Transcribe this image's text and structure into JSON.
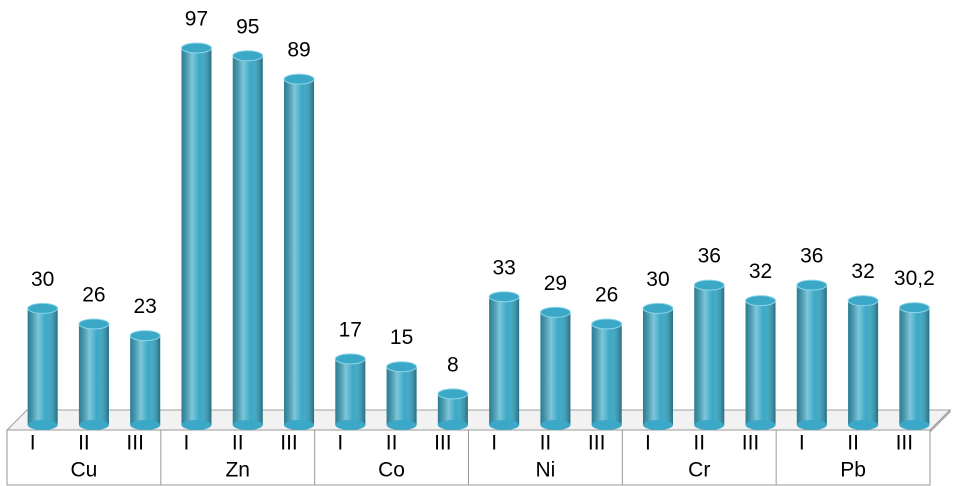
{
  "chart_data": {
    "type": "bar",
    "categories": [
      "I",
      "II",
      "III",
      "I",
      "II",
      "III",
      "I",
      "II",
      "III",
      "I",
      "II",
      "III",
      "I",
      "II",
      "III",
      "I",
      "II",
      "III"
    ],
    "groups": [
      "Cu",
      "Zn",
      "Co",
      "Ni",
      "Cr",
      "Pb"
    ],
    "values": [
      30,
      26,
      23,
      97,
      95,
      89,
      17,
      15,
      8,
      33,
      29,
      26,
      30,
      36,
      32,
      36,
      32,
      30.2
    ],
    "value_labels": [
      "30",
      "26",
      "23",
      "97",
      "95",
      "89",
      "17",
      "15",
      "8",
      "33",
      "29",
      "26",
      "30",
      "36",
      "32",
      "36",
      "32",
      "30,2"
    ],
    "color": "#3aa8c6"
  }
}
